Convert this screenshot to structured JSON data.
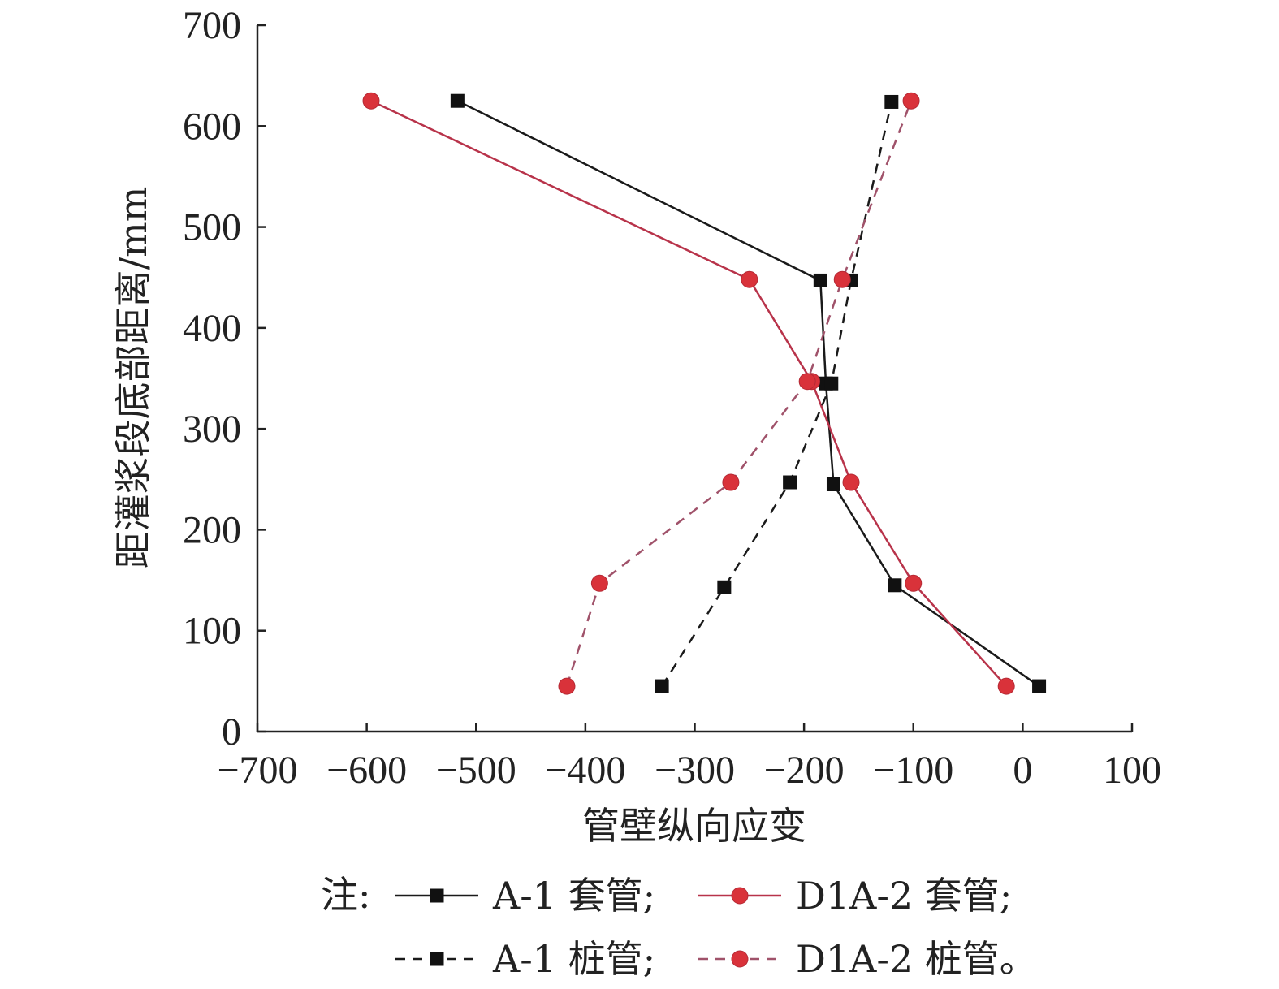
{
  "chart_data": {
    "type": "line",
    "title": "",
    "xlabel": "管壁纵向应变",
    "ylabel": "距灌浆段底部距离/mm",
    "xlim": [
      -700,
      100
    ],
    "ylim": [
      0,
      700
    ],
    "xticks": [
      -700,
      -600,
      -500,
      -400,
      -300,
      -200,
      -100,
      0,
      100
    ],
    "yticks": [
      0,
      100,
      200,
      300,
      400,
      500,
      600,
      700
    ],
    "xtick_labels": [
      "−700",
      "−600",
      "−500",
      "−400",
      "−300",
      "−200",
      "−100",
      "0",
      "100"
    ],
    "ytick_labels": [
      "0",
      "100",
      "200",
      "300",
      "400",
      "500",
      "600",
      "700"
    ],
    "grid": false,
    "legend_position": "bottom",
    "legend_prefix": "注:",
    "series": [
      {
        "name": "A-1 套管;",
        "color": "#1a1a1a",
        "marker": "square",
        "line_style": "solid",
        "x": [
          15,
          -117,
          -173,
          -180,
          -185,
          -517
        ],
        "y": [
          45,
          145,
          245,
          345,
          447,
          625
        ]
      },
      {
        "name": "D1A-2 套管;",
        "color": "#b8334a",
        "marker": "circle",
        "line_style": "solid",
        "x": [
          -15,
          -100,
          -157,
          -193,
          -250,
          -596
        ],
        "y": [
          45,
          147,
          247,
          347,
          448,
          625
        ]
      },
      {
        "name": "A-1 桩管;",
        "color": "#1a1a1a",
        "marker": "square",
        "line_style": "dashed",
        "x": [
          -330,
          -273,
          -213,
          -175,
          -157,
          -120
        ],
        "y": [
          45,
          143,
          247,
          345,
          447,
          624
        ]
      },
      {
        "name": "D1A-2 桩管。",
        "color": "#a0526a",
        "marker": "circle",
        "line_style": "dashed",
        "x": [
          -417,
          -387,
          -267,
          -197,
          -165,
          -102
        ],
        "y": [
          45,
          147,
          247,
          347,
          448,
          625
        ]
      }
    ]
  }
}
